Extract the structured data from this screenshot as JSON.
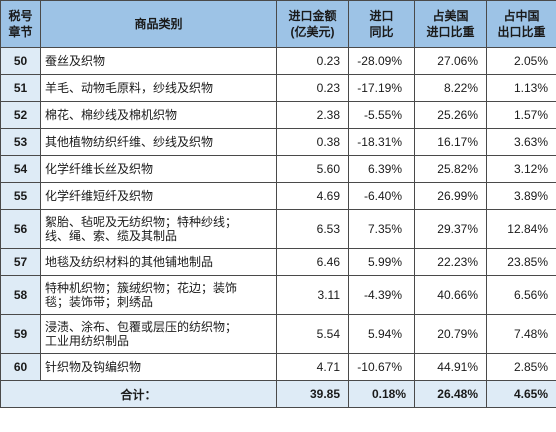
{
  "headers": {
    "code": [
      "税号",
      "章节"
    ],
    "category": "商品类别",
    "import_value": [
      "进口金额",
      "(亿美元)"
    ],
    "yoy": [
      "进口",
      "同比"
    ],
    "us_share": [
      "占美国",
      "进口比重"
    ],
    "cn_share": [
      "占中国",
      "出口比重"
    ]
  },
  "rows": [
    {
      "code": "50",
      "name": [
        "蚕丝及织物"
      ],
      "value": "0.23",
      "yoy": "-28.09%",
      "us": "27.06%",
      "cn": "2.05%"
    },
    {
      "code": "51",
      "name": [
        "羊毛、动物毛原料，纱线及织物"
      ],
      "value": "0.23",
      "yoy": "-17.19%",
      "us": "8.22%",
      "cn": "1.13%"
    },
    {
      "code": "52",
      "name": [
        "棉花、棉纱线及棉机织物"
      ],
      "value": "2.38",
      "yoy": "-5.55%",
      "us": "25.26%",
      "cn": "1.57%"
    },
    {
      "code": "53",
      "name": [
        "其他植物纺织纤维、纱线及织物"
      ],
      "value": "0.38",
      "yoy": "-18.31%",
      "us": "16.17%",
      "cn": "3.63%"
    },
    {
      "code": "54",
      "name": [
        "化学纤维长丝及织物"
      ],
      "value": "5.60",
      "yoy": "6.39%",
      "us": "25.82%",
      "cn": "3.12%"
    },
    {
      "code": "55",
      "name": [
        "化学纤维短纤及织物"
      ],
      "value": "4.69",
      "yoy": "-6.40%",
      "us": "26.99%",
      "cn": "3.89%"
    },
    {
      "code": "56",
      "name": [
        "絮胎、毡呢及无纺织物；特种纱线；",
        "线、绳、索、缆及其制品"
      ],
      "value": "6.53",
      "yoy": "7.35%",
      "us": "29.37%",
      "cn": "12.84%"
    },
    {
      "code": "57",
      "name": [
        "地毯及纺织材料的其他铺地制品"
      ],
      "value": "6.46",
      "yoy": "5.99%",
      "us": "22.23%",
      "cn": "23.85%"
    },
    {
      "code": "58",
      "name": [
        "特种机织物；簇绒织物；花边；装饰",
        "毯；装饰带；刺绣品"
      ],
      "value": "3.11",
      "yoy": "-4.39%",
      "us": "40.66%",
      "cn": "6.56%"
    },
    {
      "code": "59",
      "name": [
        "浸渍、涂布、包覆或层压的纺织物；",
        "工业用纺织制品"
      ],
      "value": "5.54",
      "yoy": "5.94%",
      "us": "20.79%",
      "cn": "7.48%"
    },
    {
      "code": "60",
      "name": [
        "针织物及钩编织物"
      ],
      "value": "4.71",
      "yoy": "-10.67%",
      "us": "44.91%",
      "cn": "2.85%"
    }
  ],
  "total": {
    "label": "合计：",
    "value": "39.85",
    "yoy": "0.18%",
    "us": "26.48%",
    "cn": "4.65%"
  }
}
